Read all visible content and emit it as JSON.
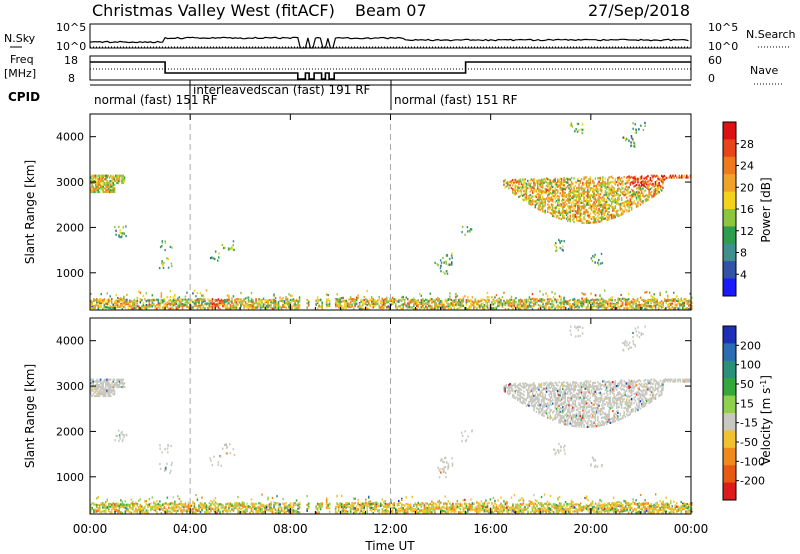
{
  "header": {
    "station": "Christmas Valley West (fitACF)",
    "beam": "Beam 07",
    "date": "27/Sep/2018"
  },
  "nsky": {
    "label": "N.Sky",
    "ticks": [
      "10^5",
      "10^0"
    ],
    "right_ticks": [
      "10^5",
      "10^0"
    ],
    "right_label": "N.Search"
  },
  "freq": {
    "label_lines": [
      "Freq",
      "[MHz]"
    ],
    "ticks": [
      "18",
      "8"
    ],
    "right_ticks": [
      "60",
      "0"
    ],
    "right_label": "Nave"
  },
  "cpid": {
    "label": "CPID",
    "segments": [
      {
        "text": "normal (fast) 151 RF",
        "start_hour": 0
      },
      {
        "text": "interleavedscan (fast) 191 RF",
        "start_hour": 4
      },
      {
        "text": "normal (fast) 151 RF",
        "start_hour": 12
      }
    ]
  },
  "x_ticks": [
    "00:00",
    "04:00",
    "08:00",
    "12:00",
    "16:00",
    "20:00",
    "00:00"
  ],
  "xlabel": "Time UT",
  "chart_data": [
    {
      "type": "heatmap",
      "panel": "power",
      "ylabel": "Slant Range [km]",
      "ylim": [
        180,
        4500
      ],
      "y_ticks": [
        1000,
        2000,
        3000,
        4000
      ],
      "xlim_hours": [
        0,
        24
      ],
      "colorbar": {
        "label": "Power [dB]",
        "ticks": [
          "4",
          "8",
          "12",
          "16",
          "20",
          "24",
          "28"
        ],
        "colors": [
          "#1a1aff",
          "#3253a6",
          "#3f8f8f",
          "#2e9e4e",
          "#8cc63f",
          "#f2d21b",
          "#f0a22a",
          "#ef7a1e",
          "#e8451a",
          "#dd1111"
        ]
      },
      "regions": [
        {
          "name": "near-range band",
          "hours": [
            0,
            24
          ],
          "range_km": [
            200,
            450
          ],
          "level": 0.5
        },
        {
          "name": "3000 km patch (early)",
          "hours": [
            0,
            1.4
          ],
          "range_km": [
            2750,
            3150
          ],
          "level": 0.6
        },
        {
          "name": "evening arc",
          "hours": [
            16.5,
            24
          ],
          "range_km": [
            2200,
            3200
          ],
          "level": 0.55
        },
        {
          "name": "late peak near 3000 km",
          "hours": [
            22,
            24
          ],
          "range_km": [
            2950,
            3200
          ],
          "level": 0.85
        }
      ]
    },
    {
      "type": "heatmap",
      "panel": "velocity",
      "ylabel": "Slant Range [km]",
      "ylim": [
        180,
        4500
      ],
      "y_ticks": [
        1000,
        2000,
        3000,
        4000
      ],
      "xlim_hours": [
        0,
        24
      ],
      "colorbar": {
        "label": "Velocity [m s^-1]",
        "ticks": [
          "200",
          "100",
          "50",
          "15",
          "-15",
          "-50",
          "-100",
          "-200"
        ],
        "colors": [
          "#1d2fb8",
          "#2a6db3",
          "#2c8f7a",
          "#35a83c",
          "#8fd14f",
          "#c8c8c0",
          "#f2c12e",
          "#f08a1d",
          "#e85a14",
          "#dd1b1b"
        ]
      },
      "regions": [
        {
          "name": "near-range band",
          "hours": [
            0,
            24
          ],
          "range_km": [
            200,
            450
          ],
          "level": "-50 to 15"
        },
        {
          "name": "3000 km patch (early)",
          "hours": [
            0,
            1.4
          ],
          "range_km": [
            2750,
            3150
          ],
          "level": "-15 to 15"
        },
        {
          "name": "evening arc",
          "hours": [
            16.5,
            24
          ],
          "range_km": [
            2200,
            3200
          ],
          "level": "-15 to 15"
        }
      ]
    }
  ]
}
